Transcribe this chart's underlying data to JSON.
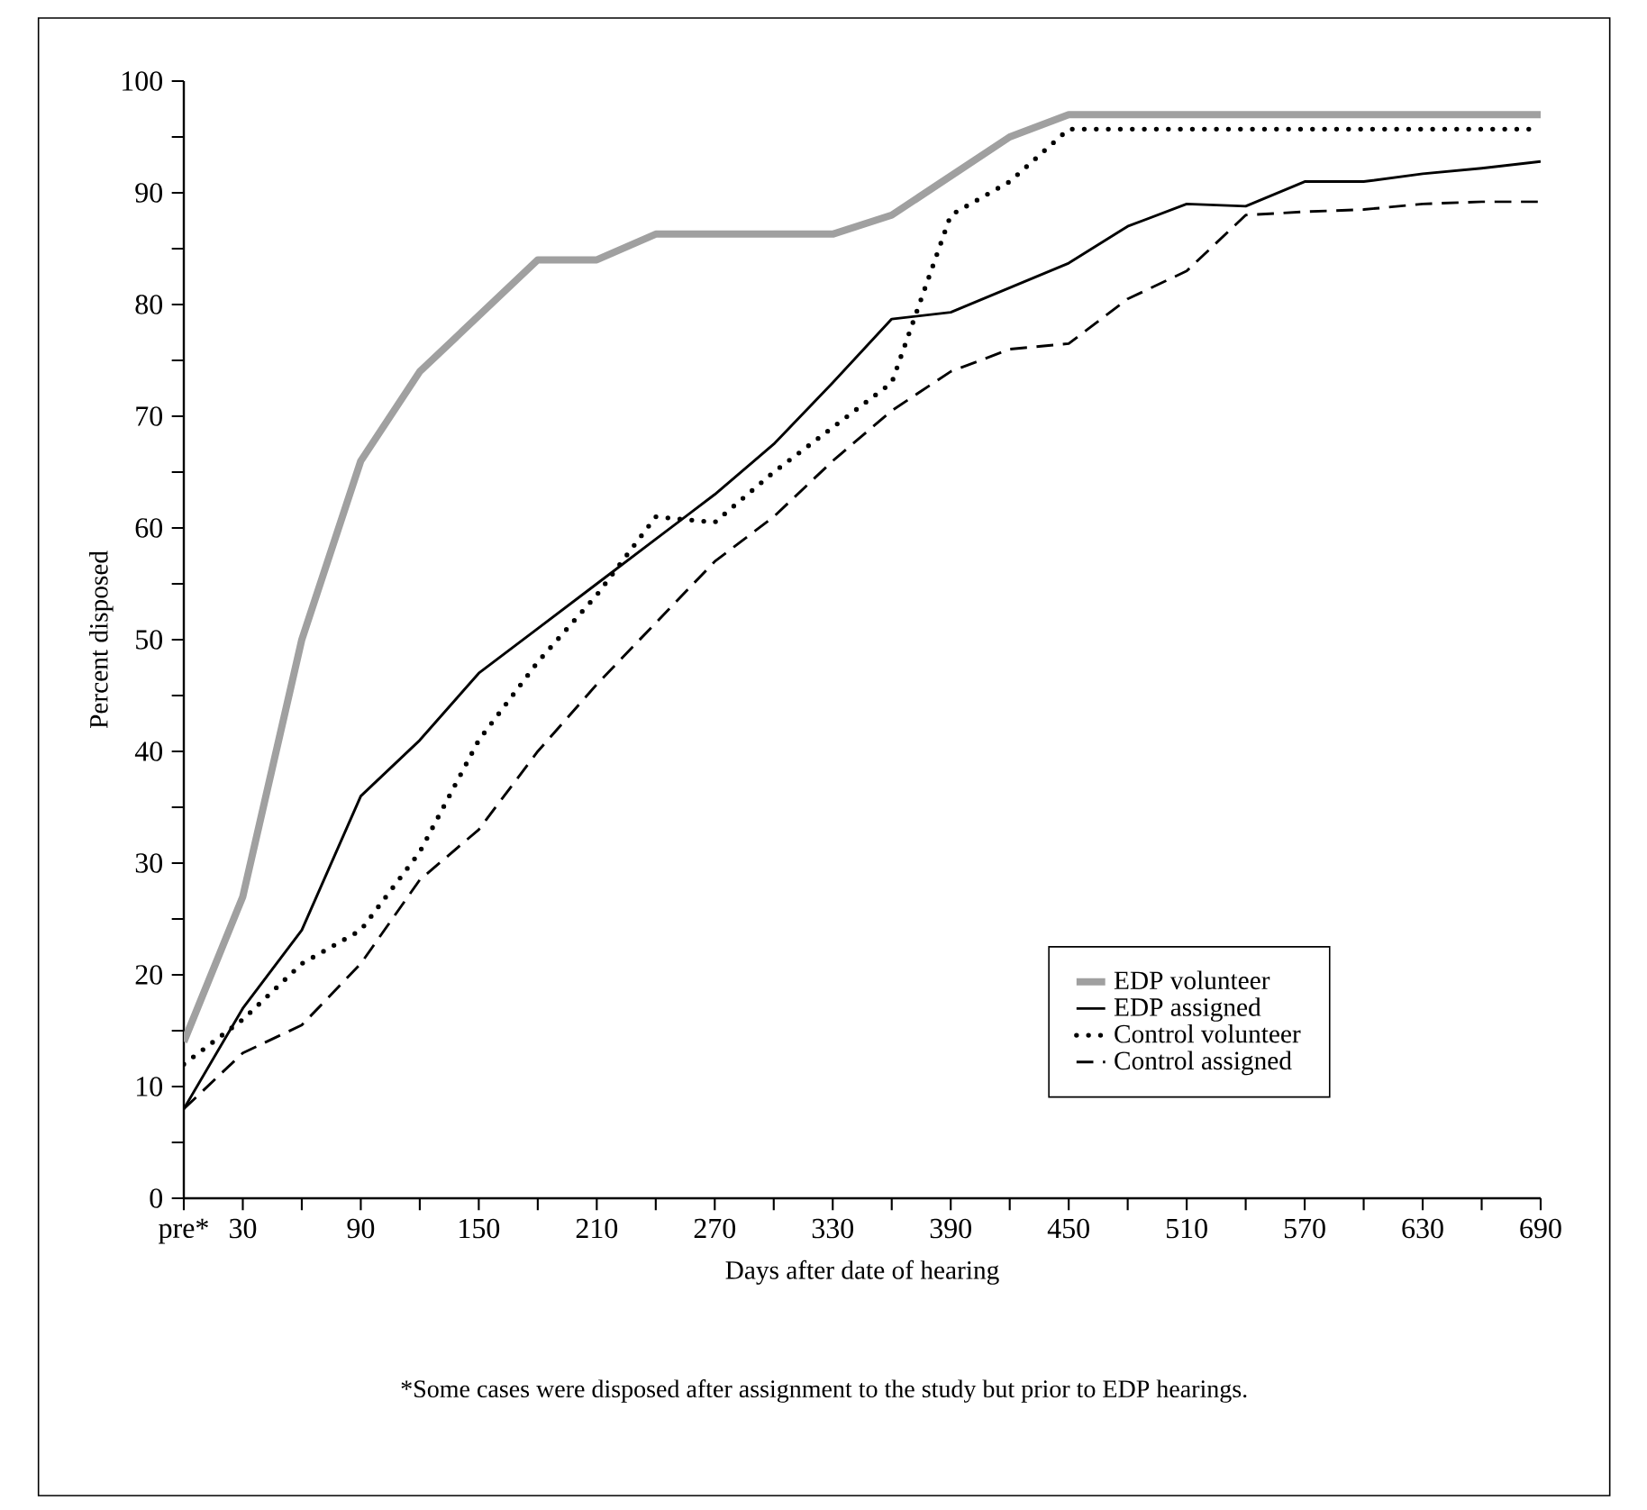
{
  "chart_data": {
    "type": "line",
    "xlabel": "Days after date of hearing",
    "ylabel": "Percent disposed",
    "annotations": [
      "*Some cases were disposed after assignment to the study but prior to EDP hearings."
    ],
    "x": [
      0,
      30,
      60,
      90,
      120,
      150,
      180,
      210,
      240,
      270,
      300,
      330,
      360,
      390,
      420,
      450,
      480,
      510,
      540,
      570,
      600,
      630,
      660,
      690
    ],
    "series": [
      {
        "name": "EDP volunteer",
        "color": "#a0a0a0",
        "line_style": "solid",
        "values": [
          14,
          27,
          50,
          66,
          74,
          79,
          84,
          84,
          86.3,
          86.3,
          86.3,
          86.3,
          88,
          91.5,
          95,
          97,
          97,
          97,
          97,
          97,
          97,
          97,
          97,
          97
        ]
      },
      {
        "name": "EDP assigned",
        "color": "#000000",
        "line_style": "solid",
        "values": [
          8,
          17,
          24,
          36,
          41,
          47,
          51,
          55,
          59,
          63,
          67.5,
          73,
          78.7,
          79.3,
          81.5,
          83.7,
          87,
          89,
          88.8,
          91,
          91,
          91.7,
          92.2,
          92.8
        ]
      },
      {
        "name": "Control volunteer",
        "color": "#000000",
        "line_style": "dotted",
        "values": [
          12,
          16,
          21,
          24,
          31,
          41,
          48,
          54,
          61,
          60.5,
          65,
          69,
          73,
          88,
          91,
          95.7,
          95.7,
          95.7,
          95.7,
          95.7,
          95.7,
          95.7,
          95.7,
          95.7
        ]
      },
      {
        "name": "Control assigned",
        "color": "#000000",
        "line_style": "dashed",
        "values": [
          8,
          13,
          15.5,
          21,
          28.5,
          33,
          40,
          46,
          51.5,
          57,
          61,
          66,
          70.5,
          74,
          76,
          76.5,
          80.5,
          83,
          88,
          88.3,
          88.5,
          89,
          89.2,
          89.2
        ]
      }
    ],
    "xlim": [
      0,
      690
    ],
    "xticks": [
      {
        "value": 0,
        "label": "pre*"
      },
      30,
      {
        "value": 60,
        "label": null
      },
      90,
      {
        "value": 120,
        "label": null
      },
      150,
      {
        "value": 180,
        "label": null
      },
      210,
      {
        "value": 240,
        "label": null
      },
      270,
      {
        "value": 300,
        "label": null
      },
      330,
      {
        "value": 360,
        "label": null
      },
      390,
      {
        "value": 420,
        "label": null
      },
      450,
      {
        "value": 480,
        "label": null
      },
      510,
      {
        "value": 540,
        "label": null
      },
      570,
      {
        "value": 600,
        "label": null
      },
      630,
      {
        "value": 660,
        "label": null
      },
      690
    ],
    "ylim": [
      0,
      100
    ],
    "yticks": [
      0,
      {
        "value": 5,
        "label": null
      },
      10,
      {
        "value": 15,
        "label": null
      },
      20,
      {
        "value": 25,
        "label": null
      },
      30,
      {
        "value": 35,
        "label": null
      },
      40,
      {
        "value": 45,
        "label": null
      },
      50,
      {
        "value": 55,
        "label": null
      },
      60,
      {
        "value": 65,
        "label": null
      },
      70,
      {
        "value": 75,
        "label": null
      },
      80,
      {
        "value": 85,
        "label": null
      },
      90,
      {
        "value": 95,
        "label": null
      },
      100
    ],
    "grid": false,
    "legend": "bottom right",
    "marker": "none"
  }
}
